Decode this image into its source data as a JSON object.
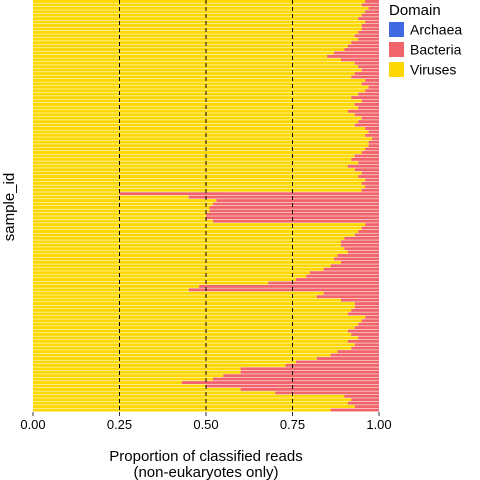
{
  "chart_data": {
    "type": "bar",
    "orientation": "horizontal",
    "stacked": true,
    "xlabel": "Proportion of classified reads\n(non-eukaryotes only)",
    "ylabel": "sample_id",
    "xlim": [
      0,
      1
    ],
    "x_ticks": [
      0,
      0.25,
      0.5,
      0.75,
      1
    ],
    "x_tick_labels": [
      "0.00",
      "0.25",
      "0.50",
      "0.75",
      "1.00"
    ],
    "reference_lines_x": [
      0.25,
      0.5,
      0.75
    ],
    "y_tick_labels_shown": false,
    "grid": false,
    "legend": {
      "title": "Domain",
      "placement": "top-right",
      "entries": [
        {
          "name": "Archaea",
          "color": "#4169E1"
        },
        {
          "name": "Bacteria",
          "color": "#F0646A"
        },
        {
          "name": "Viruses",
          "color": "#FFD700"
        }
      ]
    },
    "series_order": [
      "Viruses",
      "Bacteria",
      "Archaea"
    ],
    "viruses_proportion": [
      0.96,
      0.95,
      0.97,
      0.96,
      0.95,
      0.94,
      0.96,
      0.95,
      0.95,
      0.94,
      0.93,
      0.94,
      0.92,
      0.91,
      0.9,
      0.87,
      0.85,
      0.89,
      0.93,
      0.94,
      0.95,
      0.93,
      0.92,
      0.96,
      0.95,
      0.97,
      0.96,
      0.94,
      0.92,
      0.95,
      0.93,
      0.94,
      0.91,
      0.93,
      0.95,
      0.94,
      0.93,
      0.96,
      0.97,
      0.96,
      0.98,
      0.97,
      0.97,
      0.96,
      0.95,
      0.93,
      0.92,
      0.94,
      0.91,
      0.93,
      0.95,
      0.94,
      0.96,
      0.95,
      0.96,
      0.95,
      0.25,
      0.45,
      0.53,
      0.52,
      0.51,
      0.51,
      0.5,
      0.5,
      0.52,
      0.96,
      0.95,
      0.94,
      0.93,
      0.9,
      0.89,
      0.89,
      0.9,
      0.91,
      0.88,
      0.87,
      0.89,
      0.86,
      0.84,
      0.8,
      0.79,
      0.76,
      0.68,
      0.48,
      0.45,
      0.84,
      0.82,
      0.89,
      0.93,
      0.93,
      0.92,
      0.91,
      0.96,
      0.95,
      0.94,
      0.93,
      0.91,
      0.92,
      0.94,
      0.91,
      0.93,
      0.92,
      0.88,
      0.86,
      0.82,
      0.76,
      0.73,
      0.6,
      0.6,
      0.55,
      0.52,
      0.43,
      0.5,
      0.6,
      0.7,
      0.9,
      0.92,
      0.91,
      0.93,
      0.86
    ],
    "archaea_proportion": [
      0,
      0,
      0,
      0,
      0,
      0,
      0,
      0,
      0,
      0,
      0,
      0,
      0,
      0,
      0,
      0,
      0,
      0,
      0,
      0,
      0,
      0,
      0,
      0,
      0,
      0,
      0,
      0,
      0,
      0,
      0,
      0,
      0,
      0,
      0,
      0,
      0,
      0,
      0,
      0,
      0,
      0,
      0,
      0,
      0,
      0,
      0,
      0,
      0,
      0,
      0,
      0,
      0,
      0,
      0,
      0,
      0,
      0,
      0,
      0,
      0,
      0,
      0,
      0,
      0,
      0,
      0,
      0,
      0,
      0,
      0,
      0,
      0,
      0,
      0,
      0,
      0,
      0,
      0,
      0,
      0,
      0,
      0,
      0,
      0,
      0,
      0,
      0,
      0,
      0,
      0,
      0,
      0,
      0,
      0,
      0,
      0,
      0,
      0,
      0,
      0,
      0,
      0,
      0,
      0,
      0,
      0,
      0,
      0,
      0,
      0,
      0,
      0,
      0,
      0,
      0,
      0,
      0,
      0,
      0
    ]
  }
}
